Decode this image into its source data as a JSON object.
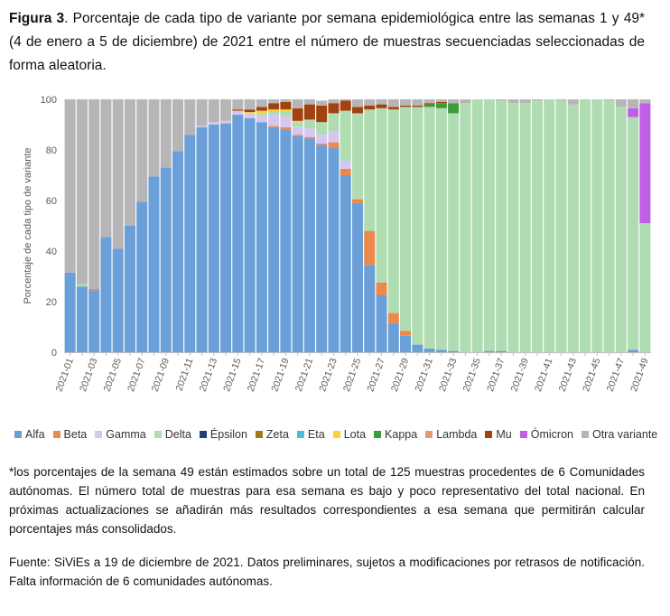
{
  "caption": {
    "label": "Figura 3",
    "text": ". Porcentaje de cada tipo de variante por semana epidemiológica entre las semanas 1 y 49* (4 de enero a 5 de diciembre) de 2021 entre el número de muestras secuenciadas seleccionadas de forma aleatoria."
  },
  "note": "*los porcentajes de la semana 49 están estimados sobre un total de 125 muestras procedentes de 6 Comunidades autónomas. El número total de muestras para esa semana es bajo y poco representativo del total nacional. En próximas actualizaciones se añadirán más resultados correspondientes a esa semana que permitirán calcular porcentajes más consolidados.",
  "source": "Fuente: SiViEs a 19 de diciembre de 2021. Datos preliminares, sujetos a modificaciones por retrasos de notificación. Falta información de 6 comunidades autónomas.",
  "chart_data": {
    "type": "bar",
    "stacked": true,
    "title": "",
    "xlabel": "",
    "ylabel": "Porcentaje de cada tipo de variante",
    "ylim": [
      0,
      100
    ],
    "yticks": [
      0,
      20,
      40,
      60,
      80,
      100
    ],
    "grid": false,
    "legend_position": "bottom",
    "categories": [
      "2021-01",
      "2021-02",
      "2021-03",
      "2021-04",
      "2021-05",
      "2021-06",
      "2021-07",
      "2021-08",
      "2021-09",
      "2021-10",
      "2021-11",
      "2021-12",
      "2021-13",
      "2021-14",
      "2021-15",
      "2021-16",
      "2021-17",
      "2021-18",
      "2021-19",
      "2021-20",
      "2021-21",
      "2021-22",
      "2021-23",
      "2021-24",
      "2021-25",
      "2021-26",
      "2021-27",
      "2021-28",
      "2021-29",
      "2021-30",
      "2021-31",
      "2021-32",
      "2021-33",
      "2021-34",
      "2021-35",
      "2021-36",
      "2021-37",
      "2021-38",
      "2021-39",
      "2021-40",
      "2021-41",
      "2021-42",
      "2021-43",
      "2021-44",
      "2021-45",
      "2021-46",
      "2021-47",
      "2021-48",
      "2021-49"
    ],
    "tick_labels": [
      "2021-01",
      "2021-03",
      "2021-05",
      "2021-07",
      "2021-09",
      "2021-11",
      "2021-13",
      "2021-15",
      "2021-17",
      "2021-19",
      "2021-21",
      "2021-23",
      "2021-25",
      "2021-27",
      "2021-29",
      "2021-31",
      "2021-33",
      "2021-35",
      "2021-37",
      "2021-39",
      "2021-41",
      "2021-43",
      "2021-45",
      "2021-47",
      "2021-49"
    ],
    "series": [
      {
        "name": "Alfa",
        "color": "#6a9fd8",
        "values": [
          31.5,
          26,
          24.5,
          45.5,
          41,
          50,
          59.5,
          69.5,
          73,
          79.5,
          86,
          89,
          90,
          90.5,
          94,
          92.5,
          91,
          89,
          88,
          85.5,
          84.5,
          82,
          81,
          70,
          59,
          34.5,
          22.5,
          11.5,
          6.5,
          3,
          1.5,
          1,
          0.5,
          0,
          0,
          0.5,
          0.5,
          0,
          0,
          0,
          0,
          0,
          0,
          0,
          0,
          0,
          0,
          1,
          0
        ]
      },
      {
        "name": "Beta",
        "color": "#ec8a4d",
        "values": [
          0,
          0,
          0.5,
          0,
          0,
          0,
          0,
          0,
          0,
          0,
          0,
          0,
          0,
          0,
          0,
          0,
          0,
          0.5,
          1,
          0.5,
          0.5,
          0.5,
          2,
          2.5,
          1.5,
          13.5,
          5,
          4,
          2,
          0,
          0,
          0,
          0,
          0,
          0,
          0,
          0,
          0,
          0,
          0,
          0,
          0,
          0,
          0,
          0,
          0,
          0,
          0,
          0
        ]
      },
      {
        "name": "Gamma",
        "color": "#d8c6f1",
        "values": [
          0,
          0,
          0,
          0,
          0,
          0,
          0,
          0,
          0,
          0,
          0,
          0.5,
          1,
          1,
          1.5,
          2,
          2.5,
          4.5,
          4,
          3,
          3.5,
          3.5,
          4.5,
          3,
          0,
          0,
          0,
          0,
          0,
          0,
          0,
          0,
          0,
          0,
          0,
          0,
          0,
          0,
          0,
          0,
          0,
          0,
          0,
          0,
          0,
          0,
          0,
          0,
          0
        ]
      },
      {
        "name": "Delta",
        "color": "#b0dcb2",
        "values": [
          0,
          1,
          0,
          0,
          0,
          0,
          0,
          0,
          0,
          0,
          0,
          0,
          0,
          0,
          0,
          0,
          1,
          1,
          2,
          2,
          3.5,
          5,
          7,
          20,
          34,
          48,
          69,
          80.5,
          88.5,
          94,
          95.5,
          95.5,
          94,
          98.5,
          100,
          99.5,
          99,
          98.5,
          98.5,
          99.5,
          100,
          99.5,
          98,
          100,
          100,
          99.5,
          97,
          92,
          51
        ]
      },
      {
        "name": "Épsilon",
        "color": "#1f3f77",
        "values": [
          0,
          0,
          0,
          0,
          0,
          0,
          0,
          0,
          0,
          0,
          0,
          0,
          0,
          0,
          0,
          0,
          0,
          0,
          0,
          0,
          0,
          0,
          0,
          0,
          0,
          0,
          0,
          0,
          0,
          0,
          0,
          0,
          0,
          0,
          0,
          0,
          0,
          0,
          0,
          0,
          0,
          0,
          0,
          0,
          0,
          0,
          0,
          0,
          0
        ]
      },
      {
        "name": "Zeta",
        "color": "#9c7b16",
        "values": [
          0,
          0,
          0,
          0,
          0,
          0,
          0,
          0,
          0,
          0,
          0,
          0,
          0,
          0,
          0,
          0,
          0,
          0,
          0,
          0,
          0,
          0,
          0,
          0,
          0,
          0,
          0,
          0,
          0,
          0,
          0,
          0,
          0,
          0,
          0,
          0,
          0,
          0,
          0,
          0,
          0,
          0,
          0,
          0,
          0,
          0,
          0,
          0,
          0
        ]
      },
      {
        "name": "Eta",
        "color": "#48c1cf",
        "values": [
          0,
          0,
          0,
          0,
          0,
          0,
          0,
          0,
          0,
          0,
          0,
          0,
          0,
          0,
          0,
          0,
          0,
          0,
          0,
          0,
          0,
          0,
          0,
          0,
          0,
          0,
          0,
          0,
          0,
          0,
          0,
          0,
          0,
          0,
          0,
          0,
          0,
          0,
          0,
          0,
          0,
          0,
          0,
          0,
          0,
          0,
          0,
          0,
          0
        ]
      },
      {
        "name": "Lota",
        "color": "#f2d43a",
        "values": [
          0,
          0,
          0,
          0,
          0,
          0,
          0,
          0,
          0,
          0,
          0,
          0,
          0,
          0,
          0,
          0.5,
          1,
          1,
          1,
          0.5,
          0,
          0,
          0,
          0,
          0,
          0,
          0,
          0,
          0,
          0,
          0,
          0,
          0,
          0,
          0,
          0,
          0,
          0,
          0,
          0,
          0,
          0,
          0,
          0,
          0,
          0,
          0,
          0,
          0
        ]
      },
      {
        "name": "Kappa",
        "color": "#3c9c3c",
        "values": [
          0,
          0,
          0,
          0,
          0,
          0,
          0,
          0,
          0,
          0,
          0,
          0,
          0,
          0,
          0,
          0,
          0,
          0,
          0,
          0,
          0,
          0,
          0,
          0,
          0,
          0,
          0,
          0,
          0,
          0,
          1,
          2,
          4,
          0,
          0,
          0,
          0,
          0,
          0,
          0,
          0,
          0,
          0,
          0,
          0,
          0,
          0,
          0,
          0
        ]
      },
      {
        "name": "Lambda",
        "color": "#e39b76",
        "values": [
          0,
          0,
          0,
          0,
          0,
          0,
          0,
          0,
          0,
          0,
          0,
          0,
          0,
          0,
          0,
          0,
          0,
          0,
          0,
          0,
          0,
          0,
          0,
          0,
          0,
          0,
          0,
          0,
          0,
          0,
          0,
          0,
          0,
          0,
          0,
          0,
          0,
          0,
          0,
          0,
          0,
          0,
          0,
          0,
          0,
          0,
          0,
          0,
          0
        ]
      },
      {
        "name": "Mu",
        "color": "#a2420f",
        "values": [
          0,
          0,
          0,
          0,
          0,
          0,
          0,
          0,
          0,
          0,
          0,
          0,
          0,
          0,
          0.5,
          1,
          1.5,
          2.5,
          3,
          5,
          6,
          6.5,
          4,
          4,
          2.5,
          1.5,
          1.5,
          1,
          0.5,
          0.5,
          0.5,
          0.5,
          0,
          0,
          0,
          0,
          0,
          0,
          0,
          0,
          0,
          0,
          0,
          0,
          0,
          0,
          0,
          0,
          0
        ]
      },
      {
        "name": "Ómicron",
        "color": "#c15ee6",
        "values": [
          0,
          0,
          0,
          0,
          0,
          0,
          0,
          0,
          0,
          0,
          0,
          0,
          0,
          0,
          0,
          0,
          0,
          0,
          0,
          0,
          0,
          0,
          0,
          0,
          0,
          0,
          0,
          0,
          0,
          0,
          0,
          0,
          0,
          0,
          0,
          0,
          0,
          0,
          0,
          0,
          0,
          0,
          0,
          0,
          0,
          0,
          0,
          3.5,
          47.5
        ]
      },
      {
        "name": "Otra variante",
        "color": "#b6b6b6",
        "values": [
          68.5,
          73,
          75,
          54.5,
          59,
          50,
          40.5,
          30.5,
          27,
          20.5,
          14,
          10.5,
          9,
          8.5,
          4,
          4,
          3,
          1.5,
          1,
          3.5,
          2,
          2,
          1.5,
          0.5,
          3,
          2.5,
          2,
          3,
          2.5,
          2.5,
          1.5,
          1,
          1.5,
          1.5,
          0,
          0,
          0.5,
          1.5,
          1.5,
          0.5,
          0,
          0.5,
          2,
          0,
          0,
          0.5,
          3,
          3.5,
          1.5
        ]
      }
    ]
  }
}
